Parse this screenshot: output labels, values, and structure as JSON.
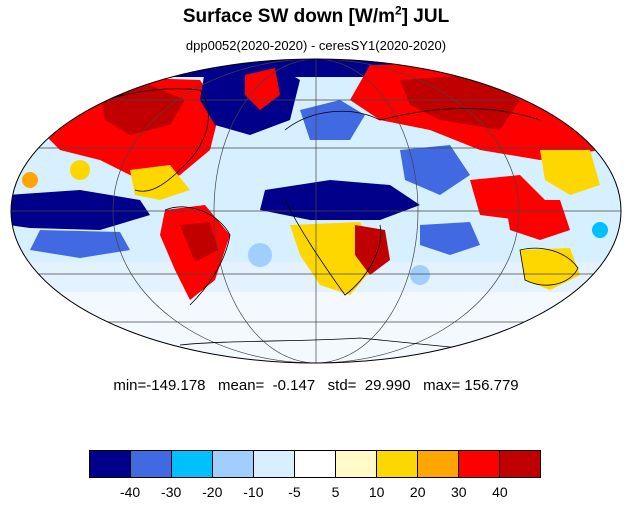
{
  "title": {
    "prefix": "Surface SW down [W/m",
    "sup": "2",
    "suffix": "]  JUL"
  },
  "subtitle": "dpp0052(2020-2020) - ceresSY1(2020-2020)",
  "stats": {
    "text": "min=-149.178   mean=  -0.147   std=  29.990   max= 156.779"
  },
  "colorbar": {
    "colors": [
      "#00008b",
      "#4169e1",
      "#00bfff",
      "#a0cfff",
      "#d6f0ff",
      "#ffffff",
      "#fffac8",
      "#ffd700",
      "#ffa500",
      "#ff0000",
      "#c00000"
    ],
    "labels": [
      "-40",
      "-30",
      "-20",
      "-10",
      "-5",
      "5",
      "10",
      "20",
      "30",
      "40"
    ]
  }
}
